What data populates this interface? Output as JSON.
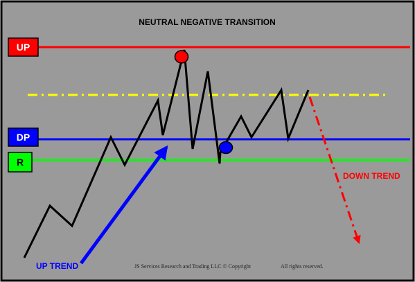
{
  "title": "NEUTRAL NEGATIVE TRANSITION",
  "levels": [
    {
      "id": "up",
      "label": "UP",
      "color": "#ff0000",
      "box_fill": "#ff0000",
      "text_color": "#ffffff"
    },
    {
      "id": "dp",
      "label": "DP",
      "color": "#0000ff",
      "box_fill": "#0000ff",
      "text_color": "#ffffff"
    },
    {
      "id": "r",
      "label": "R",
      "color": "#00ff00",
      "box_fill": "#00ff00",
      "text_color": "#000000"
    }
  ],
  "annotations": {
    "up_trend": "UP TREND",
    "down_trend": "DOWN TREND"
  },
  "footer": {
    "copyright": "JS Services Research and Trading LLC © Copyright",
    "rights": "All rights reserved."
  },
  "colors": {
    "background": "#9a9a9a",
    "frame": "#000000",
    "price_line": "#000000",
    "neutral_line": "#ffff00",
    "up_trend_arrow": "#0000ff",
    "down_trend_arrow": "#ff0000",
    "top_marker": "#ff0000",
    "bottom_marker": "#0000ff"
  }
}
